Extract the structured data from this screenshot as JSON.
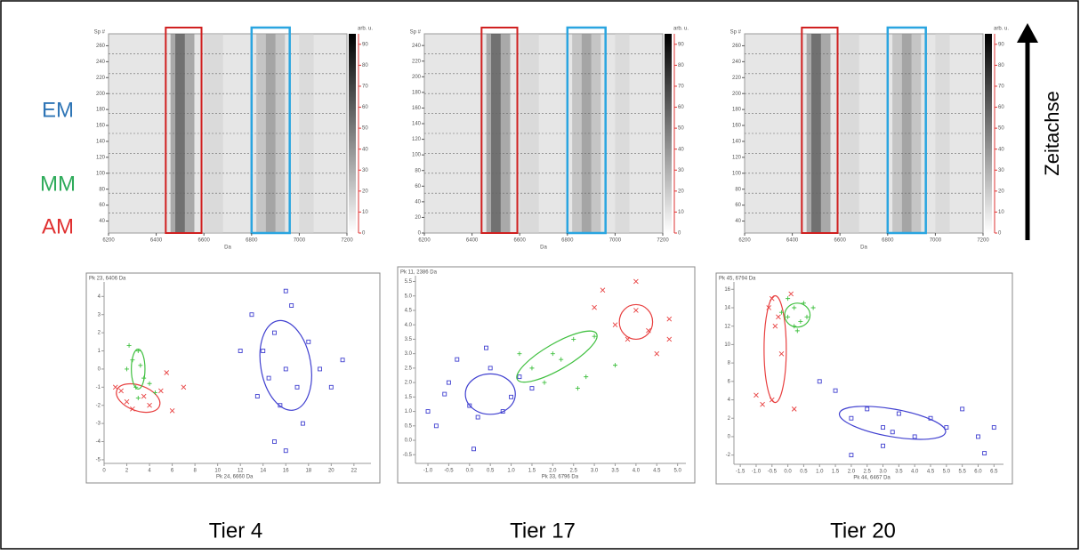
{
  "labels": {
    "em": "EM",
    "mm": "MM",
    "am": "AM",
    "time_axis": "Zeitachse"
  },
  "colorbar": {
    "label": "arb. u.",
    "ticks": [
      0,
      10,
      20,
      30,
      40,
      50,
      60,
      70,
      80,
      90
    ],
    "lim": [
      0,
      95
    ]
  },
  "panels": [
    {
      "caption": "Tier 4",
      "gel": {
        "y_label": "Sp #",
        "x_label": "Da",
        "xlim": [
          6200,
          7200
        ],
        "xticks": [
          6200,
          6400,
          6600,
          6800,
          7000,
          7200
        ],
        "ylim": [
          25,
          275
        ],
        "yticks": [
          40,
          60,
          80,
          100,
          120,
          140,
          160,
          180,
          200,
          220,
          240,
          260
        ]
      },
      "scatter": {
        "x_label": "Pk 24, 6660 Da",
        "y_label": "Pk 23, 6406 Da",
        "xlim": [
          0,
          23.5
        ],
        "xticks": [
          0,
          2,
          4,
          6,
          8,
          10,
          12,
          14,
          16,
          18,
          20,
          22
        ],
        "ylim": [
          -5.2,
          4.8
        ],
        "yticks": [
          -5,
          -4,
          -3,
          -2,
          -1,
          0,
          1,
          2,
          3,
          4
        ],
        "series": [
          {
            "color": "#e84040",
            "marker": "x",
            "x": [
              1,
              1.5,
              2,
              3.5,
              4,
              5,
              6,
              7,
              5.5,
              2.5
            ],
            "y": [
              -1,
              -1.2,
              -1.8,
              -1.5,
              -2,
              -1.2,
              -2.3,
              -1,
              -0.2,
              -2.2
            ],
            "ellipse": {
              "cx": 3,
              "cy": -1.6,
              "rx": 2,
              "ry": 0.7,
              "angle": 20
            }
          },
          {
            "color": "#40c040",
            "marker": "plus",
            "x": [
              2.5,
              3,
              2,
              3.5,
              2.8,
              3.2,
              4,
              2.2,
              3,
              4.5
            ],
            "y": [
              0.5,
              1,
              0,
              -0.5,
              -1,
              0.2,
              -0.8,
              1.3,
              -1.6,
              -1.3
            ],
            "ellipse": {
              "cx": 3,
              "cy": 0,
              "rx": 0.6,
              "ry": 1.1,
              "angle": 0
            }
          },
          {
            "color": "#4040d0",
            "marker": "square",
            "x": [
              14,
              15,
              16,
              17,
              15.5,
              13,
              18,
              16.5,
              14.5,
              17.5,
              15,
              19,
              12,
              20,
              16,
              13.5,
              21,
              16
            ],
            "y": [
              1,
              2,
              0,
              -1,
              -2,
              3,
              1.5,
              3.5,
              -0.5,
              -3,
              -4,
              0,
              1,
              -1,
              4.3,
              -1.5,
              0.5,
              -4.5
            ],
            "ellipse": {
              "cx": 16,
              "cy": 0.2,
              "rx": 2.2,
              "ry": 2.5,
              "angle": -10
            }
          }
        ]
      }
    },
    {
      "caption": "Tier 17",
      "gel": {
        "y_label": "Sp #",
        "x_label": "Da",
        "xlim": [
          6200,
          7200
        ],
        "xticks": [
          6200,
          6400,
          6600,
          6800,
          7000,
          7200
        ],
        "ylim": [
          0,
          255
        ],
        "yticks": [
          0,
          20,
          40,
          60,
          80,
          100,
          120,
          140,
          160,
          180,
          200,
          220,
          240
        ]
      },
      "scatter": {
        "x_label": "Pk 33, 6796 Da",
        "y_label": "Pk 11, 2386 Da",
        "xlim": [
          -1.3,
          5.2
        ],
        "xticks": [
          {
            "value": -1,
            "label": "-1.0"
          },
          -0.5,
          {
            "value": 0,
            "label": "0.0"
          },
          0.5,
          {
            "value": 1,
            "label": "1.0"
          },
          1.5,
          {
            "value": 2,
            "label": "2.0"
          },
          2.5,
          {
            "value": 3,
            "label": "3.0"
          },
          3.5,
          {
            "value": 4,
            "label": "4.0"
          },
          4.5,
          {
            "value": 5,
            "label": "5.0"
          }
        ],
        "ylim": [
          -0.8,
          5.7
        ],
        "yticks": [
          -0.5,
          {
            "value": 0,
            "label": "0.0"
          },
          0.5,
          {
            "value": 1,
            "label": "1.0"
          },
          1.5,
          {
            "value": 2,
            "label": "2.0"
          },
          2.5,
          {
            "value": 3,
            "label": "3.0"
          },
          3.5,
          {
            "value": 4,
            "label": "4.0"
          },
          4.5,
          {
            "value": 5,
            "label": "5.0"
          },
          5.5
        ],
        "series": [
          {
            "color": "#4040d0",
            "marker": "square",
            "x": [
              -1,
              -0.5,
              0,
              0.5,
              1,
              -0.8,
              0.2,
              1.2,
              -0.3,
              0.8,
              0.1,
              -0.6,
              1.5,
              0.4
            ],
            "y": [
              1,
              2,
              1.2,
              2.5,
              1.5,
              0.5,
              0.8,
              2.2,
              2.8,
              1,
              -0.3,
              1.6,
              1.8,
              3.2
            ],
            "ellipse": {
              "cx": 0.5,
              "cy": 1.6,
              "rx": 0.6,
              "ry": 0.7,
              "angle": 0
            }
          },
          {
            "color": "#40c040",
            "marker": "plus",
            "x": [
              1.5,
              2,
              2.5,
              1.8,
              2.2,
              3,
              1.2,
              2.8,
              2.6,
              3.5
            ],
            "y": [
              2.5,
              3,
              3.5,
              2,
              2.8,
              3.6,
              3,
              2.2,
              1.8,
              2.6
            ],
            "ellipse": {
              "cx": 2.1,
              "cy": 2.9,
              "rx": 1.1,
              "ry": 0.45,
              "angle": -30
            }
          },
          {
            "color": "#e84040",
            "marker": "x",
            "x": [
              3.5,
              4,
              3.8,
              4.3,
              4.8,
              3.2,
              4.5,
              3,
              4,
              4.8
            ],
            "y": [
              4,
              4.5,
              3.5,
              3.8,
              4.2,
              5.2,
              3,
              4.6,
              5.5,
              3.5
            ],
            "ellipse": {
              "cx": 4,
              "cy": 4.1,
              "rx": 0.4,
              "ry": 0.6,
              "angle": 0
            }
          }
        ]
      }
    },
    {
      "caption": "Tier 20",
      "gel": {
        "y_label": "Sp #",
        "x_label": "Da",
        "xlim": [
          6200,
          7200
        ],
        "xticks": [
          6200,
          6400,
          6600,
          6800,
          7000,
          7200
        ],
        "ylim": [
          25,
          275
        ],
        "yticks": [
          40,
          60,
          80,
          100,
          120,
          140,
          160,
          180,
          200,
          220,
          240,
          260
        ]
      },
      "scatter": {
        "x_label": "Pk 44, 6467 Da",
        "y_label": "Pk 45, 6794 Da",
        "xlim": [
          -1.7,
          6.8
        ],
        "xticks": [
          -1.5,
          {
            "value": -1,
            "label": "-1.0"
          },
          -0.5,
          {
            "value": 0,
            "label": "0.0"
          },
          0.5,
          {
            "value": 1,
            "label": "1.0"
          },
          1.5,
          {
            "value": 2,
            "label": "2.0"
          },
          2.5,
          {
            "value": 3,
            "label": "3.0"
          },
          3.5,
          {
            "value": 4,
            "label": "4.0"
          },
          4.5,
          {
            "value": 5,
            "label": "5.0"
          },
          5.5,
          {
            "value": 6,
            "label": "6.0"
          },
          6.5
        ],
        "ylim": [
          -3,
          16.8
        ],
        "yticks": [
          -2,
          0,
          2,
          4,
          6,
          8,
          10,
          12,
          14,
          16
        ],
        "series": [
          {
            "color": "#e84040",
            "marker": "x",
            "x": [
              -0.5,
              -0.3,
              -0.5,
              -0.8,
              -0.2,
              -0.6,
              0.1,
              -1,
              0.2,
              -0.4
            ],
            "y": [
              4,
              13,
              15,
              3.5,
              9,
              14,
              15.5,
              4.5,
              3,
              12
            ],
            "ellipse": {
              "cx": -0.4,
              "cy": 9.5,
              "rx": 0.35,
              "ry": 5.8,
              "angle": 0
            }
          },
          {
            "color": "#40c040",
            "marker": "plus",
            "x": [
              0,
              0.2,
              0.4,
              -0.2,
              0.5,
              0.3,
              0.6,
              0,
              0.8,
              0.2
            ],
            "y": [
              13,
              14,
              12.5,
              13.5,
              14.5,
              11.5,
              13,
              15,
              14,
              12
            ],
            "ellipse": {
              "cx": 0.3,
              "cy": 13.2,
              "rx": 0.4,
              "ry": 1.3,
              "angle": 0
            }
          },
          {
            "color": "#4040d0",
            "marker": "square",
            "x": [
              2,
              3,
              3.5,
              4,
              2.5,
              1,
              1.5,
              5,
              6,
              6.5,
              3,
              4.5,
              2,
              5.5,
              3.3,
              6.2
            ],
            "y": [
              2,
              1,
              2.5,
              0,
              3,
              6,
              5,
              1,
              0,
              1,
              -1,
              2,
              -2,
              3,
              0.5,
              -1.8
            ],
            "ellipse": {
              "cx": 3.3,
              "cy": 1.5,
              "rx": 1.7,
              "ry": 1.5,
              "angle": 10
            }
          }
        ]
      }
    }
  ]
}
